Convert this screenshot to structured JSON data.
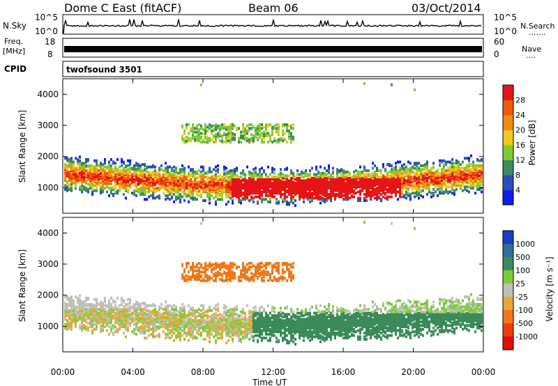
{
  "header": {
    "station": "Dome C East (fitACF)",
    "beam": "Beam 06",
    "date": "03/Oct/2014"
  },
  "status_panels": {
    "nsky": {
      "label": "N.Sky",
      "left_ticks": [
        "10^5",
        "10^0"
      ],
      "right_ticks": [
        "10^5",
        "10^0"
      ],
      "right_label": "N.Search",
      "right_dots": "......."
    },
    "freq": {
      "label_top": "Freq.",
      "label_bottom": "[MHz]",
      "left_ticks": [
        "18",
        "8"
      ],
      "right_ticks": [
        "60",
        "0"
      ],
      "right_label": "Nave",
      "right_dots": "...."
    },
    "cpid": {
      "label": "CPID",
      "value": "twofsound 3501"
    }
  },
  "chart_data": [
    {
      "type": "heatmap",
      "name": "power",
      "ylabel": "Slant Range [km]",
      "ylim": [
        180,
        4500
      ],
      "yticks": [
        "1000",
        "2000",
        "3000",
        "4000"
      ],
      "colorbar": {
        "label": "Power [dB]",
        "ticks": [
          "4",
          "8",
          "12",
          "16",
          "20",
          "24",
          "28"
        ],
        "range": [
          0,
          32
        ],
        "colors": [
          "#0a1cf0",
          "#2b4fb4",
          "#3c8a64",
          "#7fcc30",
          "#f0c81e",
          "#f08c14",
          "#f05a0a",
          "#e61414"
        ]
      }
    },
    {
      "type": "heatmap",
      "name": "velocity",
      "ylabel": "Slant Range [km]",
      "ylim": [
        180,
        4500
      ],
      "yticks": [
        "1000",
        "2000",
        "3000",
        "4000"
      ],
      "colorbar": {
        "label": "Velocity [m s⁻¹]",
        "ticks": [
          "1000",
          "500",
          "100",
          "25",
          "-25",
          "-100",
          "-500",
          "-1000"
        ],
        "colors": [
          "#1a3cc8",
          "#2d6e9a",
          "#3a8a5a",
          "#7ccc3c",
          "#c0c0b8",
          "#e8a838",
          "#f07818",
          "#f03c0c",
          "#e60a0a"
        ]
      }
    }
  ],
  "xaxis": {
    "ticks": [
      "00:00",
      "04:00",
      "08:00",
      "12:00",
      "16:00",
      "20:00",
      "00:00"
    ],
    "label": "Time UT"
  }
}
